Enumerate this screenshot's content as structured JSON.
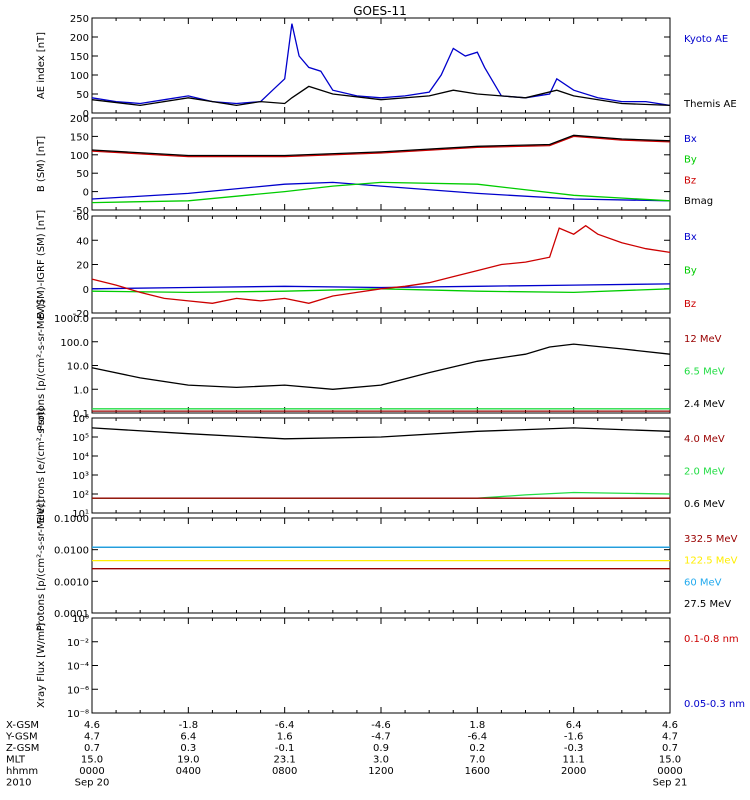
{
  "title": "GOES-11",
  "colors": {
    "black": "#000000",
    "blue": "#0000cc",
    "green": "#00cc00",
    "red": "#cc0000",
    "darkred": "#990000",
    "lime": "#22dd44",
    "yellow": "#ffee00",
    "cyan": "#22aaee"
  },
  "chart_data": [
    {
      "type": "line",
      "id": "ae",
      "ylabel": "AE index [nT]",
      "ylim": [
        0,
        250
      ],
      "yscale": "linear",
      "ticks": [
        "0",
        "50",
        "100",
        "150",
        "200",
        "250"
      ],
      "legend": [
        {
          "name": "Kyoto AE",
          "color": "#0000cc"
        },
        {
          "name": "Themis AE",
          "color": "#000000"
        }
      ],
      "series": [
        {
          "name": "Kyoto AE",
          "color": "#0000cc",
          "x": [
            0,
            1,
            2,
            3,
            4,
            5,
            6,
            7,
            7.5,
            8,
            8.3,
            8.6,
            9,
            9.5,
            10,
            11,
            12,
            13,
            14,
            14.5,
            15,
            15.5,
            16,
            16.3,
            17,
            18,
            19,
            19.3,
            20,
            21,
            22,
            23,
            24
          ],
          "y": [
            40,
            30,
            25,
            35,
            45,
            30,
            25,
            30,
            60,
            90,
            235,
            150,
            120,
            110,
            60,
            45,
            40,
            45,
            55,
            100,
            170,
            150,
            160,
            120,
            45,
            40,
            50,
            90,
            60,
            40,
            30,
            30,
            20
          ]
        },
        {
          "name": "Themis AE",
          "color": "#000000",
          "x": [
            0,
            2,
            4,
            6,
            7,
            8,
            8.3,
            9,
            10,
            12,
            14,
            15,
            16,
            18,
            19.3,
            20,
            22,
            24
          ],
          "y": [
            35,
            20,
            40,
            20,
            30,
            25,
            40,
            70,
            50,
            35,
            45,
            60,
            50,
            40,
            60,
            45,
            25,
            20
          ]
        }
      ]
    },
    {
      "type": "line",
      "id": "b",
      "ylabel": "B (SM) [nT]",
      "ylim": [
        -50,
        200
      ],
      "yscale": "linear",
      "ticks": [
        "-50",
        "0",
        "50",
        "100",
        "150",
        "200"
      ],
      "legend": [
        {
          "name": "Bx",
          "color": "#0000cc"
        },
        {
          "name": "By",
          "color": "#00cc00"
        },
        {
          "name": "Bz",
          "color": "#cc0000"
        },
        {
          "name": "Bmag",
          "color": "#000000"
        }
      ],
      "series": [
        {
          "name": "Bx",
          "color": "#0000cc",
          "x": [
            0,
            4,
            8,
            10,
            12,
            16,
            20,
            24
          ],
          "y": [
            -20,
            -5,
            20,
            25,
            15,
            -5,
            -20,
            -25
          ]
        },
        {
          "name": "By",
          "color": "#00cc00",
          "x": [
            0,
            4,
            8,
            10,
            12,
            16,
            20,
            24
          ],
          "y": [
            -30,
            -25,
            0,
            15,
            25,
            20,
            -10,
            -25
          ]
        },
        {
          "name": "Bz",
          "color": "#cc0000",
          "x": [
            0,
            4,
            8,
            12,
            16,
            19,
            20,
            22,
            24
          ],
          "y": [
            110,
            95,
            95,
            105,
            120,
            125,
            150,
            140,
            135
          ]
        },
        {
          "name": "Bmag",
          "color": "#000000",
          "x": [
            0,
            4,
            8,
            12,
            16,
            19,
            20,
            22,
            24
          ],
          "y": [
            113,
            98,
            98,
            108,
            123,
            128,
            153,
            143,
            138
          ]
        }
      ]
    },
    {
      "type": "line",
      "id": "dbb",
      "ylabel": "B (SM)-IGRF (SM) [nT]",
      "ylim": [
        -20,
        60
      ],
      "yscale": "linear",
      "ticks": [
        "-20",
        "0",
        "20",
        "40",
        "60"
      ],
      "legend": [
        {
          "name": "Bx",
          "color": "#0000cc"
        },
        {
          "name": "By",
          "color": "#00cc00"
        },
        {
          "name": "Bz",
          "color": "#cc0000"
        }
      ],
      "series": [
        {
          "name": "Bx",
          "color": "#0000cc",
          "x": [
            0,
            4,
            8,
            12,
            16,
            20,
            24
          ],
          "y": [
            0,
            1,
            2,
            1,
            2,
            3,
            4
          ]
        },
        {
          "name": "By",
          "color": "#00cc00",
          "x": [
            0,
            4,
            8,
            12,
            16,
            20,
            24
          ],
          "y": [
            -2,
            -3,
            -2,
            0,
            -2,
            -3,
            0
          ]
        },
        {
          "name": "Bz",
          "color": "#cc0000",
          "x": [
            0,
            1,
            2,
            3,
            4,
            5,
            6,
            7,
            8,
            9,
            10,
            11,
            12,
            13,
            14,
            15,
            16,
            17,
            18,
            19,
            19.4,
            20,
            20.5,
            21,
            22,
            23,
            24
          ],
          "y": [
            8,
            3,
            -3,
            -8,
            -10,
            -12,
            -8,
            -10,
            -8,
            -12,
            -6,
            -3,
            0,
            2,
            5,
            10,
            15,
            20,
            22,
            26,
            50,
            45,
            52,
            45,
            38,
            33,
            30
          ]
        }
      ]
    },
    {
      "type": "line",
      "id": "hep",
      "ylabel": "Protons [p/(cm²-s-sr-MeV)]",
      "ylim": [
        0.1,
        1000
      ],
      "yscale": "log",
      "ticks": [
        "0.1",
        "1.0",
        "10.0",
        "100.0",
        "1000.0"
      ],
      "legend": [
        {
          "name": "12 MeV",
          "color": "#990000"
        },
        {
          "name": "6.5 MeV",
          "color": "#22dd44"
        },
        {
          "name": "2.4 MeV",
          "color": "#000000"
        }
      ],
      "series": [
        {
          "name": "2.4 MeV",
          "color": "#000000",
          "x": [
            0,
            2,
            4,
            6,
            8,
            10,
            12,
            14,
            16,
            18,
            19,
            20,
            22,
            24
          ],
          "y": [
            8,
            3,
            1.5,
            1.2,
            1.5,
            1.0,
            1.5,
            5,
            15,
            30,
            60,
            80,
            50,
            30
          ]
        },
        {
          "name": "6.5 MeV",
          "color": "#22dd44",
          "x": [
            0,
            24
          ],
          "y": [
            0.15,
            0.15
          ]
        },
        {
          "name": "12 MeV",
          "color": "#990000",
          "x": [
            0,
            24
          ],
          "y": [
            0.12,
            0.12
          ]
        }
      ]
    },
    {
      "type": "line",
      "id": "electrons",
      "ylabel": "Electrons [e/(cm²-s-sr)]",
      "ylim": [
        10,
        1000000
      ],
      "yscale": "log",
      "ticks": [
        "10¹",
        "10²",
        "10³",
        "10⁴",
        "10⁵",
        "10⁶"
      ],
      "legend": [
        {
          "name": "4.0 MeV",
          "color": "#990000"
        },
        {
          "name": "2.0 MeV",
          "color": "#22dd44"
        },
        {
          "name": "0.6 MeV",
          "color": "#000000"
        }
      ],
      "series": [
        {
          "name": "0.6 MeV",
          "color": "#000000",
          "x": [
            0,
            4,
            8,
            12,
            16,
            20,
            24
          ],
          "y": [
            300000,
            150000,
            80000,
            100000,
            200000,
            300000,
            200000
          ]
        },
        {
          "name": "2.0 MeV",
          "color": "#22dd44",
          "x": [
            0,
            8,
            16,
            18,
            20,
            24
          ],
          "y": [
            60,
            60,
            60,
            90,
            120,
            100
          ]
        },
        {
          "name": "4.0 MeV",
          "color": "#990000",
          "x": [
            0,
            24
          ],
          "y": [
            60,
            60
          ]
        }
      ]
    },
    {
      "type": "line",
      "id": "hp",
      "ylabel": "Protons [p/(cm²-s-sr-MeV)]",
      "ylim": [
        0.0001,
        0.1
      ],
      "yscale": "log",
      "ticks": [
        "0.0001",
        "0.0010",
        "0.0100",
        "0.1000"
      ],
      "legend": [
        {
          "name": "332.5 MeV",
          "color": "#990000"
        },
        {
          "name": "122.5 MeV",
          "color": "#ffee00"
        },
        {
          "name": "60 MeV",
          "color": "#22aaee"
        },
        {
          "name": "27.5 MeV",
          "color": "#000000"
        }
      ],
      "series": [
        {
          "name": "27.5 MeV",
          "color": "#000000",
          "x": [
            0,
            24
          ],
          "y": [
            0.012,
            0.012
          ]
        },
        {
          "name": "60 MeV",
          "color": "#22aaee",
          "x": [
            0,
            24
          ],
          "y": [
            0.012,
            0.012
          ]
        },
        {
          "name": "122.5 MeV",
          "color": "#ffee00",
          "x": [
            0,
            24
          ],
          "y": [
            0.0045,
            0.0045
          ]
        },
        {
          "name": "332.5 MeV",
          "color": "#990000",
          "x": [
            0,
            24
          ],
          "y": [
            0.0025,
            0.0025
          ]
        }
      ]
    },
    {
      "type": "line",
      "id": "xray",
      "ylabel": "Xray Flux [W/m²]",
      "ylim": [
        1e-09,
        1
      ],
      "yscale": "log",
      "ticks": [
        "10⁻⁸",
        "10⁻⁶",
        "10⁻⁴",
        "10⁻²",
        "10⁰"
      ],
      "legend": [
        {
          "name": "0.1-0.8 nm",
          "color": "#cc0000"
        },
        {
          "name": "0.05-0.3 nm",
          "color": "#0000cc"
        }
      ],
      "series": []
    }
  ],
  "orbit_table": {
    "labels": [
      "X-GSM",
      "Y-GSM",
      "Z-GSM",
      "MLT",
      "hhmm",
      "2010"
    ],
    "columns": [
      {
        "x": 0,
        "values": [
          "4.6",
          "4.7",
          "0.7",
          "15.0",
          "0000",
          "Sep 20"
        ]
      },
      {
        "x": 4,
        "values": [
          "-1.8",
          "6.4",
          "0.3",
          "19.0",
          "0400",
          ""
        ]
      },
      {
        "x": 8,
        "values": [
          "-6.4",
          "1.6",
          "-0.1",
          "23.1",
          "0800",
          ""
        ]
      },
      {
        "x": 12,
        "values": [
          "-4.6",
          "-4.7",
          "0.9",
          "3.0",
          "1200",
          ""
        ]
      },
      {
        "x": 16,
        "values": [
          "1.8",
          "-6.4",
          "0.2",
          "7.0",
          "1600",
          ""
        ]
      },
      {
        "x": 20,
        "values": [
          "6.4",
          "-1.6",
          "-0.3",
          "11.1",
          "2000",
          ""
        ]
      },
      {
        "x": 24,
        "values": [
          "4.6",
          "4.7",
          "0.7",
          "15.0",
          "0000",
          "Sep 21"
        ]
      }
    ]
  }
}
